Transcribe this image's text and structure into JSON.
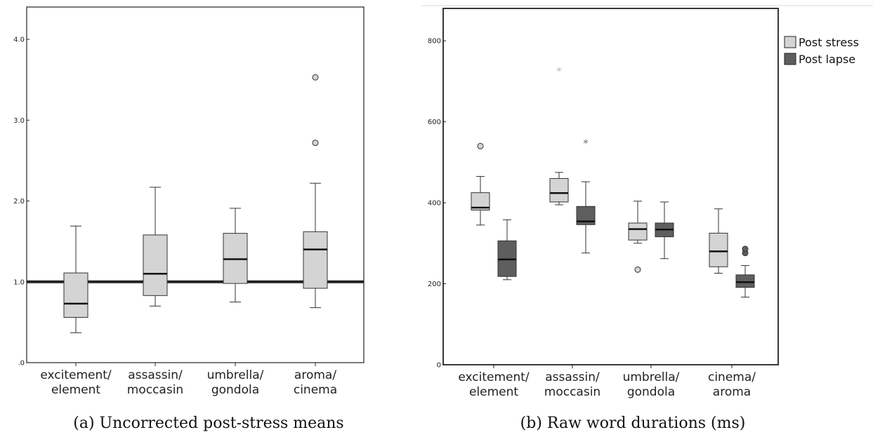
{
  "chart_data": [
    {
      "type": "boxplot",
      "caption": "(a) Uncorrected post-stress means",
      "title": "",
      "xlabel": "",
      "ylabel": "",
      "ylim": [
        0,
        4.4
      ],
      "yticks": [
        0,
        1,
        2,
        3,
        4
      ],
      "ytick_labels": [
        ".0",
        "1.0",
        "2.0",
        "3.0",
        "4.0"
      ],
      "reference_line": 1.0,
      "categories": [
        [
          "excitement/",
          "element"
        ],
        [
          "assassin/",
          "moccasin"
        ],
        [
          "umbrella/",
          "gondola"
        ],
        [
          "aroma/",
          "cinema"
        ]
      ],
      "box_color": "#d4d4d4",
      "series": [
        {
          "boxes": [
            {
              "min": 0.37,
              "q1": 0.56,
              "median": 0.73,
              "q3": 1.11,
              "max": 1.69,
              "outliers": [],
              "extremes": []
            },
            {
              "min": 0.7,
              "q1": 0.83,
              "median": 1.1,
              "q3": 1.58,
              "max": 2.17,
              "outliers": [],
              "extremes": []
            },
            {
              "min": 0.75,
              "q1": 0.98,
              "median": 1.28,
              "q3": 1.6,
              "max": 1.91,
              "outliers": [],
              "extremes": []
            },
            {
              "min": 0.68,
              "q1": 0.92,
              "median": 1.4,
              "q3": 1.62,
              "max": 2.22,
              "outliers": [
                2.72,
                3.53
              ],
              "extremes": []
            }
          ]
        }
      ]
    },
    {
      "type": "boxplot",
      "caption": "(b) Raw word durations (ms)",
      "title": "",
      "xlabel": "",
      "ylabel": "",
      "ylim": [
        0,
        880
      ],
      "yticks": [
        0,
        200,
        400,
        600,
        800
      ],
      "ytick_labels": [
        "0",
        "200",
        "400",
        "600",
        "800"
      ],
      "categories": [
        [
          "excitement/",
          "element"
        ],
        [
          "assassin/",
          "moccasin"
        ],
        [
          "umbrella/",
          "gondola"
        ],
        [
          "cinema/",
          "aroma"
        ]
      ],
      "legend_position": "top-right",
      "series": [
        {
          "name": "Post stress",
          "color": "#d4d4d4",
          "boxes": [
            {
              "min": 345,
              "q1": 382,
              "median": 388,
              "q3": 425,
              "max": 465,
              "outliers": [
                540
              ],
              "extremes": []
            },
            {
              "min": 395,
              "q1": 402,
              "median": 424,
              "q3": 460,
              "max": 475,
              "outliers": [],
              "extremes": [
                727
              ]
            },
            {
              "min": 300,
              "q1": 308,
              "median": 335,
              "q3": 350,
              "max": 404,
              "outliers": [
                235
              ],
              "extremes": []
            },
            {
              "min": 226,
              "q1": 242,
              "median": 280,
              "q3": 325,
              "max": 385,
              "outliers": [],
              "extremes": []
            }
          ]
        },
        {
          "name": "Post lapse",
          "color": "#5e5e5e",
          "boxes": [
            {
              "min": 210,
              "q1": 218,
              "median": 260,
              "q3": 306,
              "max": 358,
              "outliers": [],
              "extremes": []
            },
            {
              "min": 276,
              "q1": 346,
              "median": 354,
              "q3": 391,
              "max": 452,
              "outliers": [],
              "extremes": [
                548
              ]
            },
            {
              "min": 262,
              "q1": 316,
              "median": 334,
              "q3": 350,
              "max": 402,
              "outliers": [],
              "extremes": []
            },
            {
              "min": 167,
              "q1": 191,
              "median": 204,
              "q3": 222,
              "max": 245,
              "outliers": [
                276,
                286
              ],
              "extremes": []
            }
          ]
        }
      ]
    }
  ]
}
